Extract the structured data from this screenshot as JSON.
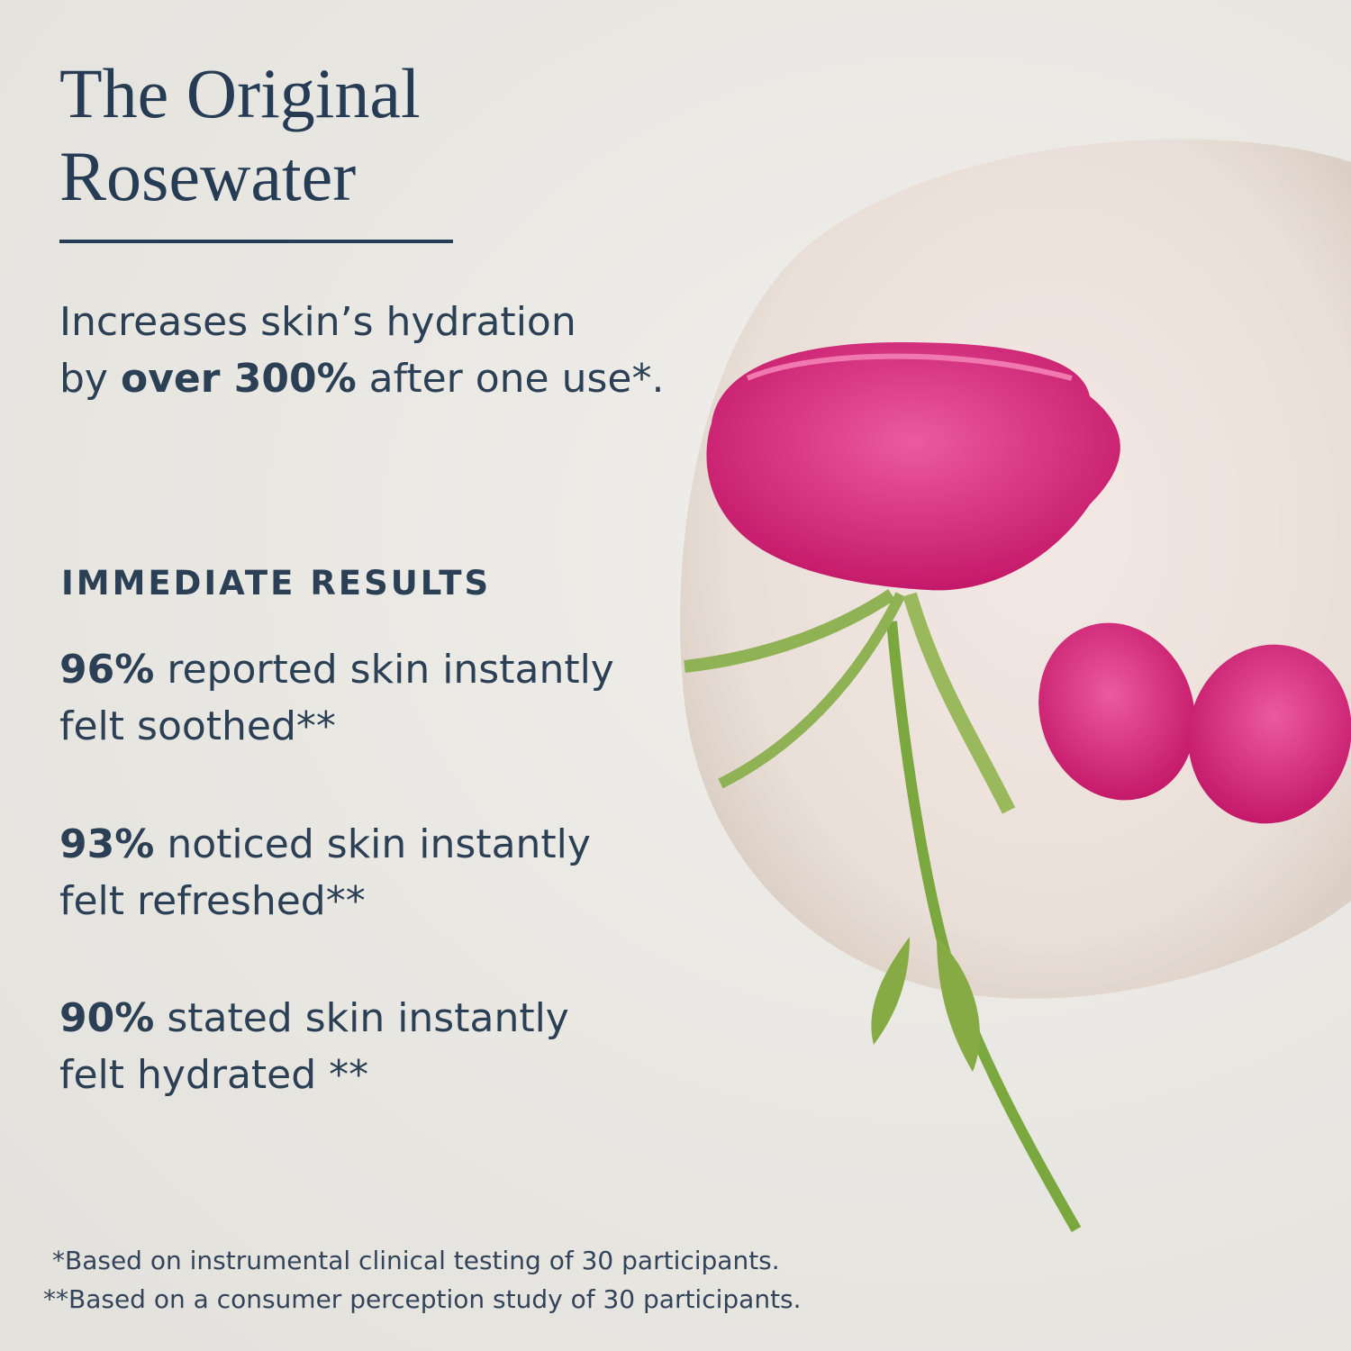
{
  "title_line1": "The Original",
  "title_line2": "Rosewater",
  "claim": {
    "line1": "Increases skin’s hydration",
    "pre": "by ",
    "bold": "over 300%",
    "post": " after one use*."
  },
  "section_heading": "IMMEDIATE RESULTS",
  "stats": [
    {
      "percent": "96%",
      "line1": " reported skin instantly",
      "line2": "felt soothed**"
    },
    {
      "percent": "93%",
      "line1": " noticed skin instantly",
      "line2": "felt refreshed**"
    },
    {
      "percent": "90%",
      "line1": " stated skin instantly",
      "line2": "felt hydrated **"
    }
  ],
  "footnotes": [
    "*Based on instrumental clinical testing of 30 participants.",
    "**Based on a consumer perception study of 30 participants."
  ],
  "colors": {
    "text": "#263c55",
    "background": "#e9e7e2",
    "rose": "#d8317a"
  }
}
